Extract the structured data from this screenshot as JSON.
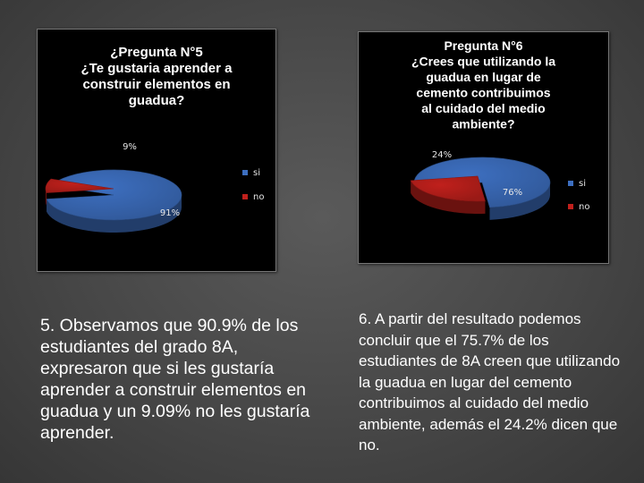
{
  "chart_data": [
    {
      "type": "pie",
      "title_lines": [
        "¿Pregunta N°5",
        "¿Te gustaria aprender a",
        "construir elementos en",
        "guadua?"
      ],
      "categories": [
        "si",
        "no"
      ],
      "values": [
        91,
        9
      ],
      "labels": [
        "91%",
        "9%"
      ],
      "legend_position": "right",
      "colors": [
        "#3d6fc0",
        "#c0201c"
      ]
    },
    {
      "type": "pie",
      "title_lines": [
        "Pregunta N°6",
        "¿Crees que utilizando la",
        "guadua en lugar de",
        "cemento  contribuimos",
        "al cuidado del medio",
        "ambiente?"
      ],
      "categories": [
        "si",
        "no"
      ],
      "values": [
        76,
        24
      ],
      "labels": [
        "76%",
        "24%"
      ],
      "legend_position": "right",
      "colors": [
        "#3d6fc0",
        "#c0201c"
      ]
    }
  ],
  "captions": {
    "left": "5. Observamos que 90.9% de los estudiantes del grado 8A, expresaron que si les gustaría aprender a construir elementos en guadua y un 9.09% no les gustaría aprender.",
    "right": "6.  A partir del  resultado podemos concluir que el 75.7% de los estudiantes de 8A creen que utilizando la guadua en lugar del cemento contribuimos al cuidado del medio ambiente, además el 24.2% dicen que no."
  }
}
